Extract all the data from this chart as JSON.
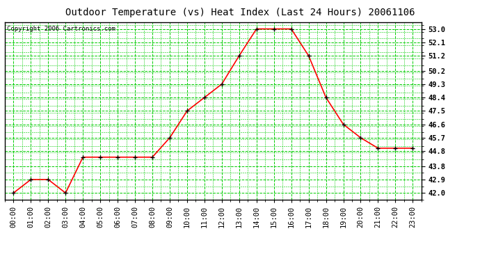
{
  "title": "Outdoor Temperature (vs) Heat Index (Last 24 Hours) 20061106",
  "copyright": "Copyright 2006 Cartronics.com",
  "x_labels": [
    "00:00",
    "01:00",
    "02:00",
    "03:00",
    "04:00",
    "05:00",
    "06:00",
    "07:00",
    "08:00",
    "09:00",
    "10:00",
    "11:00",
    "12:00",
    "13:00",
    "14:00",
    "15:00",
    "16:00",
    "17:00",
    "18:00",
    "19:00",
    "20:00",
    "21:00",
    "22:00",
    "23:00"
  ],
  "y_values": [
    42.0,
    42.9,
    42.9,
    42.0,
    44.4,
    44.4,
    44.4,
    44.4,
    44.4,
    45.7,
    47.5,
    48.4,
    49.3,
    51.2,
    53.0,
    53.0,
    53.0,
    51.2,
    48.4,
    46.6,
    45.7,
    45.0,
    45.0,
    45.0
  ],
  "y_ticks": [
    42.0,
    42.9,
    43.8,
    44.8,
    45.7,
    46.6,
    47.5,
    48.4,
    49.3,
    50.2,
    51.2,
    52.1,
    53.0
  ],
  "ylim": [
    41.55,
    53.45
  ],
  "line_color": "red",
  "marker_color": "black",
  "grid_color": "#00cc00",
  "bg_color": "white",
  "plot_bg_color": "white",
  "title_fontsize": 10,
  "copyright_fontsize": 6.5,
  "tick_fontsize": 7.5,
  "title_color": "black",
  "border_color": "black"
}
